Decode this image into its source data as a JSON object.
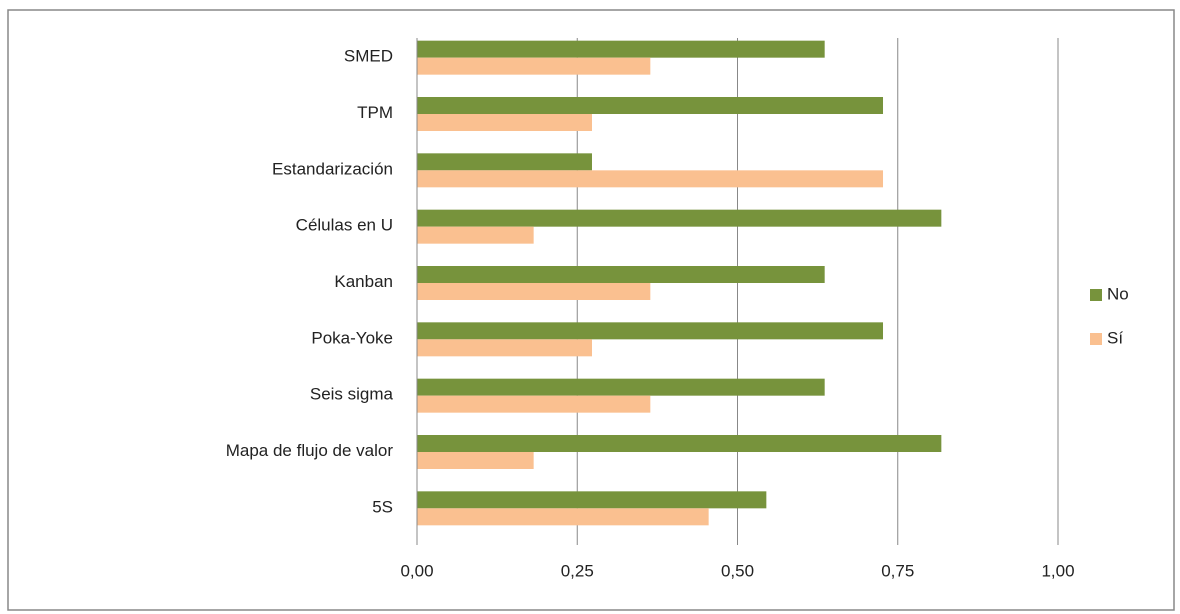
{
  "chart_data": {
    "type": "hbar",
    "categories": [
      "SMED",
      "TPM",
      "Estandarización",
      "Células en U",
      "Kanban",
      "Poka-Yoke",
      "Seis sigma",
      "Mapa de flujo de valor",
      "5S"
    ],
    "series": [
      {
        "name": "No",
        "color": "#77933c",
        "values": [
          0.636,
          0.727,
          0.273,
          0.818,
          0.636,
          0.727,
          0.636,
          0.818,
          0.545
        ]
      },
      {
        "name": "Sí",
        "color": "#fac090",
        "values": [
          0.364,
          0.273,
          0.727,
          0.182,
          0.364,
          0.273,
          0.364,
          0.182,
          0.455
        ]
      }
    ],
    "xlim": [
      0,
      1
    ],
    "xticks": [
      {
        "value": 0,
        "label": "0,00"
      },
      {
        "value": 0.25,
        "label": "0,25"
      },
      {
        "value": 0.5,
        "label": "0,50"
      },
      {
        "value": 0.75,
        "label": "0,75"
      },
      {
        "value": 1,
        "label": "1,00"
      }
    ],
    "grid": true,
    "legend": "right"
  }
}
